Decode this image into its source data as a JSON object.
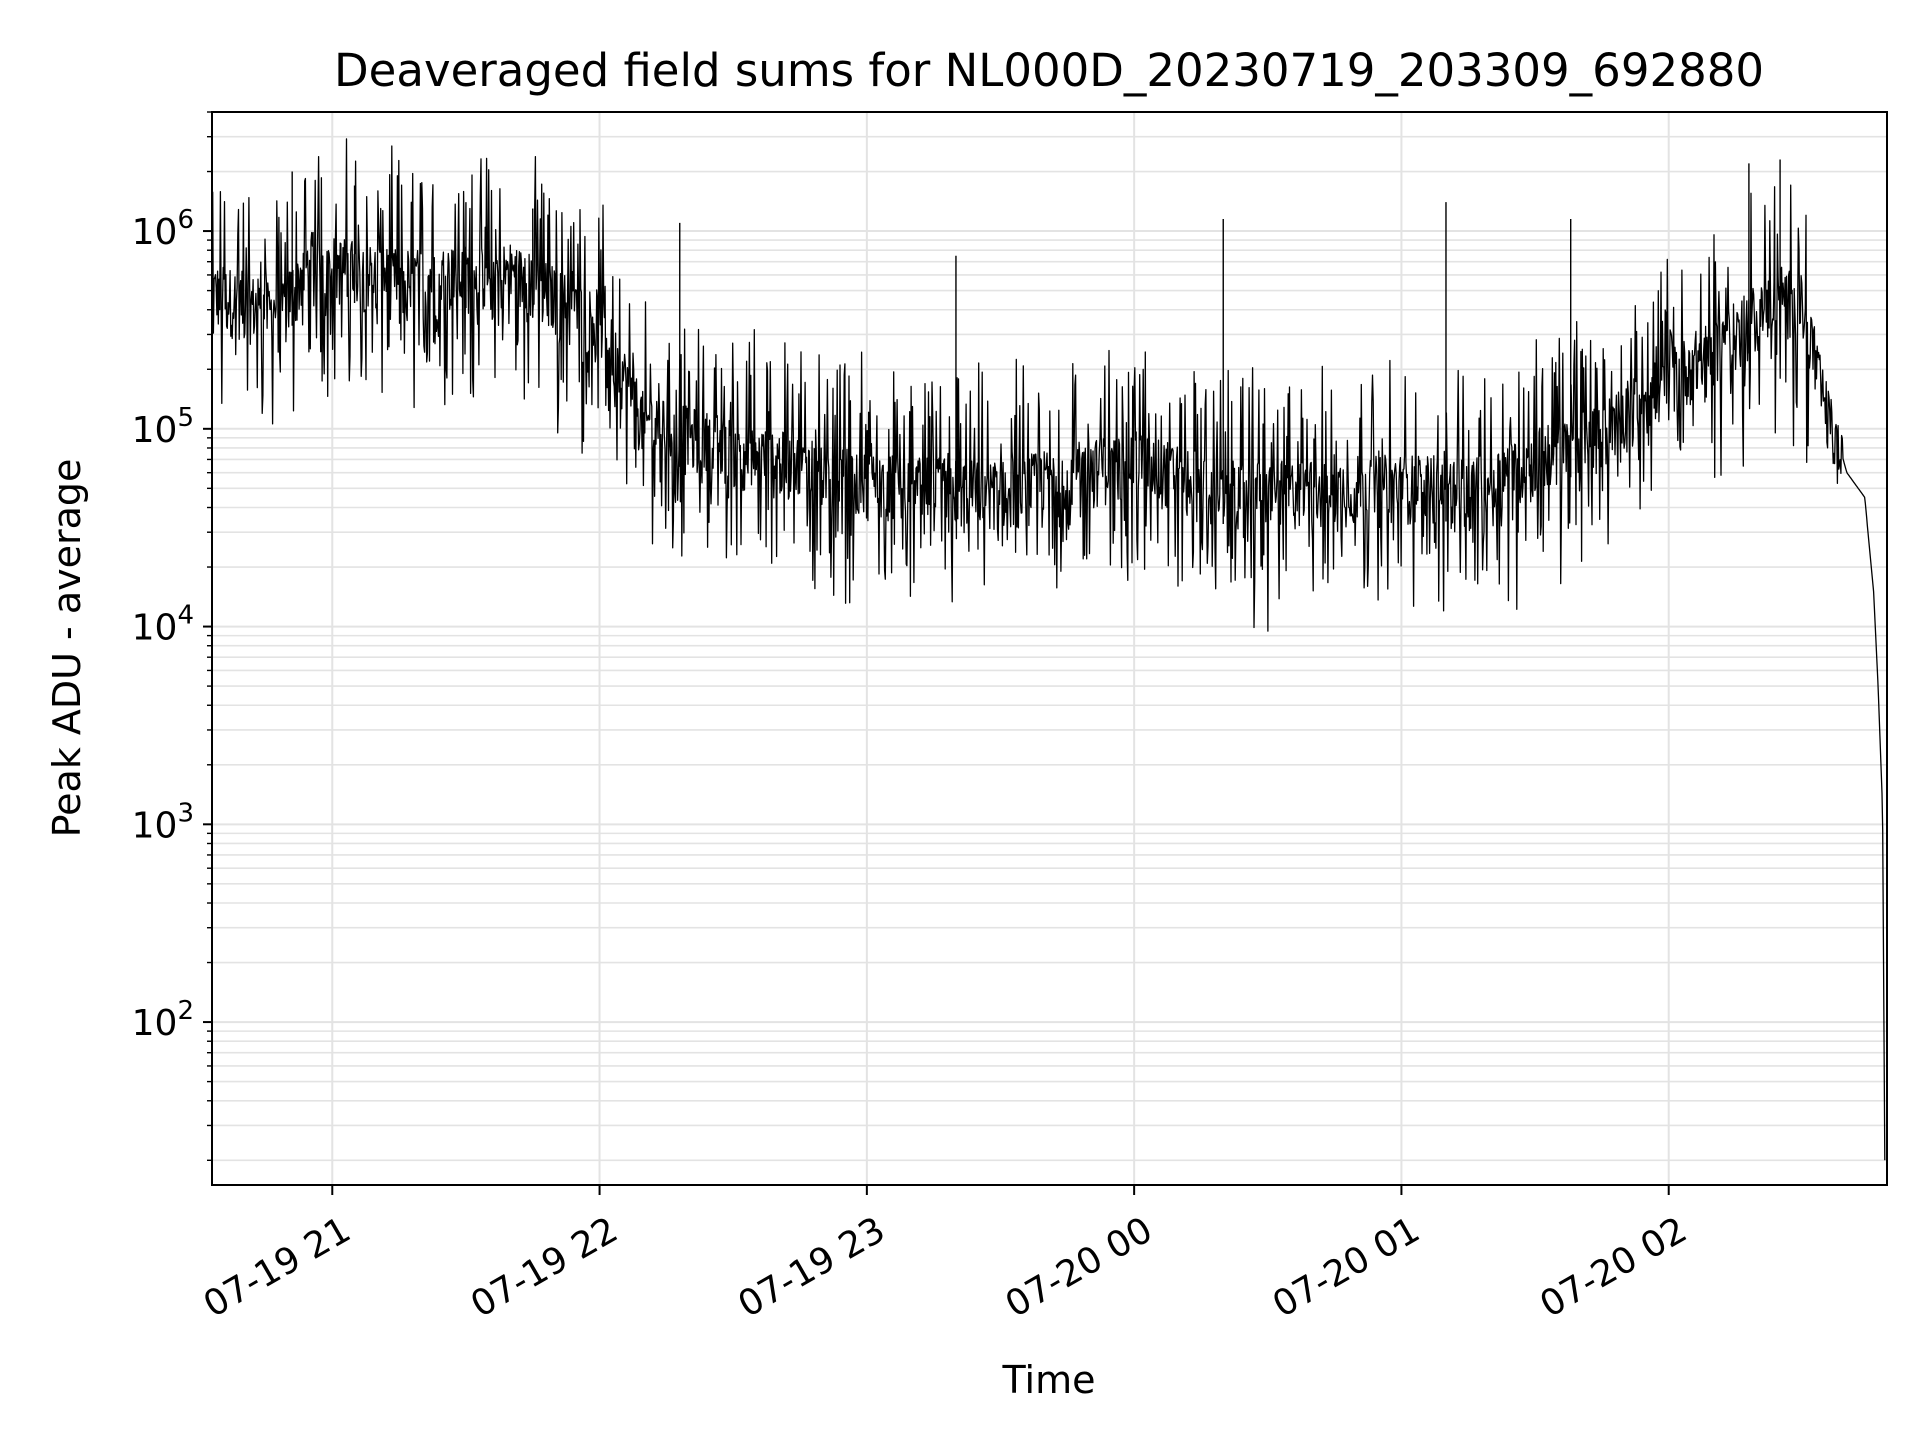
{
  "chart_data": {
    "type": "line",
    "title": "Deaveraged field sums for NL000D_20230719_203309_692880",
    "xlabel": "Time",
    "ylabel": "Peak ADU - average",
    "yscale": "log",
    "ylim": [
      15,
      4000000
    ],
    "xlim": [
      "2023-07-19 20:33",
      "2023-07-20 02:49"
    ],
    "x_ticks": [
      {
        "value": "2023-07-19 21:00",
        "label": "07-19 21"
      },
      {
        "value": "2023-07-19 22:00",
        "label": "07-19 22"
      },
      {
        "value": "2023-07-19 23:00",
        "label": "07-19 23"
      },
      {
        "value": "2023-07-20 00:00",
        "label": "07-20 00"
      },
      {
        "value": "2023-07-20 01:00",
        "label": "07-20 01"
      },
      {
        "value": "2023-07-20 02:00",
        "label": "07-20 02"
      }
    ],
    "y_ticks": [
      {
        "value": 100,
        "base": "10",
        "exp": "2"
      },
      {
        "value": 1000,
        "base": "10",
        "exp": "3"
      },
      {
        "value": 10000,
        "base": "10",
        "exp": "4"
      },
      {
        "value": 100000,
        "base": "10",
        "exp": "5"
      },
      {
        "value": 1000000,
        "base": "10",
        "exp": "6"
      }
    ],
    "grid": true,
    "line_color": "#000000",
    "grid_color": "#e3e3e3",
    "series": [
      {
        "x": [
          "2023-07-19 20:33",
          "2023-07-19 20:40",
          "2023-07-19 20:48",
          "2023-07-19 20:55",
          "2023-07-19 21:15",
          "2023-07-19 21:40",
          "2023-07-19 22:00",
          "2023-07-19 22:10",
          "2023-07-19 22:30",
          "2023-07-19 23:00",
          "2023-07-19 23:30",
          "2023-07-20 00:00",
          "2023-07-20 00:20",
          "2023-07-20 00:40",
          "2023-07-20 01:00",
          "2023-07-20 01:15",
          "2023-07-20 01:30",
          "2023-07-20 01:45",
          "2023-07-20 02:00",
          "2023-07-20 02:15",
          "2023-07-20 02:25",
          "2023-07-20 02:30",
          "2023-07-20 02:35",
          "2023-07-20 02:40",
          "2023-07-20 02:44",
          "2023-07-20 02:46",
          "2023-07-20 02:47",
          "2023-07-20 02:48",
          "2023-07-20 02:48:30"
        ],
        "y": [
          550000,
          500000,
          420000,
          800000,
          650000,
          700000,
          400000,
          120000,
          90000,
          60000,
          55000,
          80000,
          55000,
          55000,
          60000,
          55000,
          80000,
          110000,
          200000,
          350000,
          550000,
          450000,
          150000,
          60000,
          45000,
          15000,
          5000,
          1200,
          20
        ]
      }
    ],
    "spikes": [
      {
        "x": "2023-07-19 20:51",
        "y": 2000000
      },
      {
        "x": "2023-07-19 21:05",
        "y": 1700000
      },
      {
        "x": "2023-07-19 21:30",
        "y": 1400000
      },
      {
        "x": "2023-07-19 21:45",
        "y": 1300000
      },
      {
        "x": "2023-07-19 22:18",
        "y": 1100000
      },
      {
        "x": "2023-07-19 23:20",
        "y": 750000
      },
      {
        "x": "2023-07-20 00:20",
        "y": 1150000
      },
      {
        "x": "2023-07-20 01:10",
        "y": 1400000
      },
      {
        "x": "2023-07-20 01:38",
        "y": 1150000
      },
      {
        "x": "2023-07-20 02:18",
        "y": 2200000
      },
      {
        "x": "2023-07-20 02:25",
        "y": 2300000
      }
    ]
  }
}
